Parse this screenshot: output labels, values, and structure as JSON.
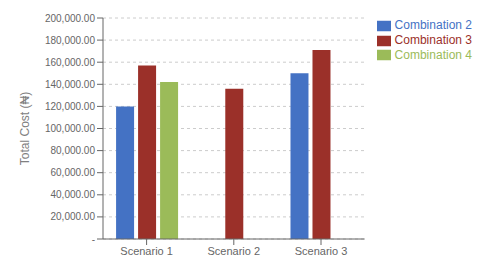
{
  "chart_data": {
    "type": "bar",
    "ylabel": "Total Cost (₦)",
    "categories": [
      "Scenario 1",
      "Scenario 2",
      "Scenario 3"
    ],
    "series": [
      {
        "name": "Combination 2",
        "color": "#4472C4",
        "values": [
          120000,
          null,
          150000
        ]
      },
      {
        "name": "Combination 3",
        "color": "#9B3029",
        "values": [
          157000,
          136000,
          171000
        ]
      },
      {
        "name": "Combination 4",
        "color": "#9BBB59",
        "values": [
          142000,
          null,
          null
        ]
      }
    ],
    "ylim": [
      0,
      200000
    ],
    "yticks": [
      {
        "value": 0,
        "label": "-"
      },
      {
        "value": 20000,
        "label": "20,000.00"
      },
      {
        "value": 40000,
        "label": "40,000.00"
      },
      {
        "value": 60000,
        "label": "60,000.00"
      },
      {
        "value": 80000,
        "label": "80,000.00"
      },
      {
        "value": 100000,
        "label": "100,000.00"
      },
      {
        "value": 120000,
        "label": "120,000.00"
      },
      {
        "value": 140000,
        "label": "140,000.00"
      },
      {
        "value": 160000,
        "label": "160,000.00"
      },
      {
        "value": 180000,
        "label": "180,000.00"
      },
      {
        "value": 200000,
        "label": "200,000.00"
      }
    ],
    "grid": true,
    "legend": "right"
  }
}
